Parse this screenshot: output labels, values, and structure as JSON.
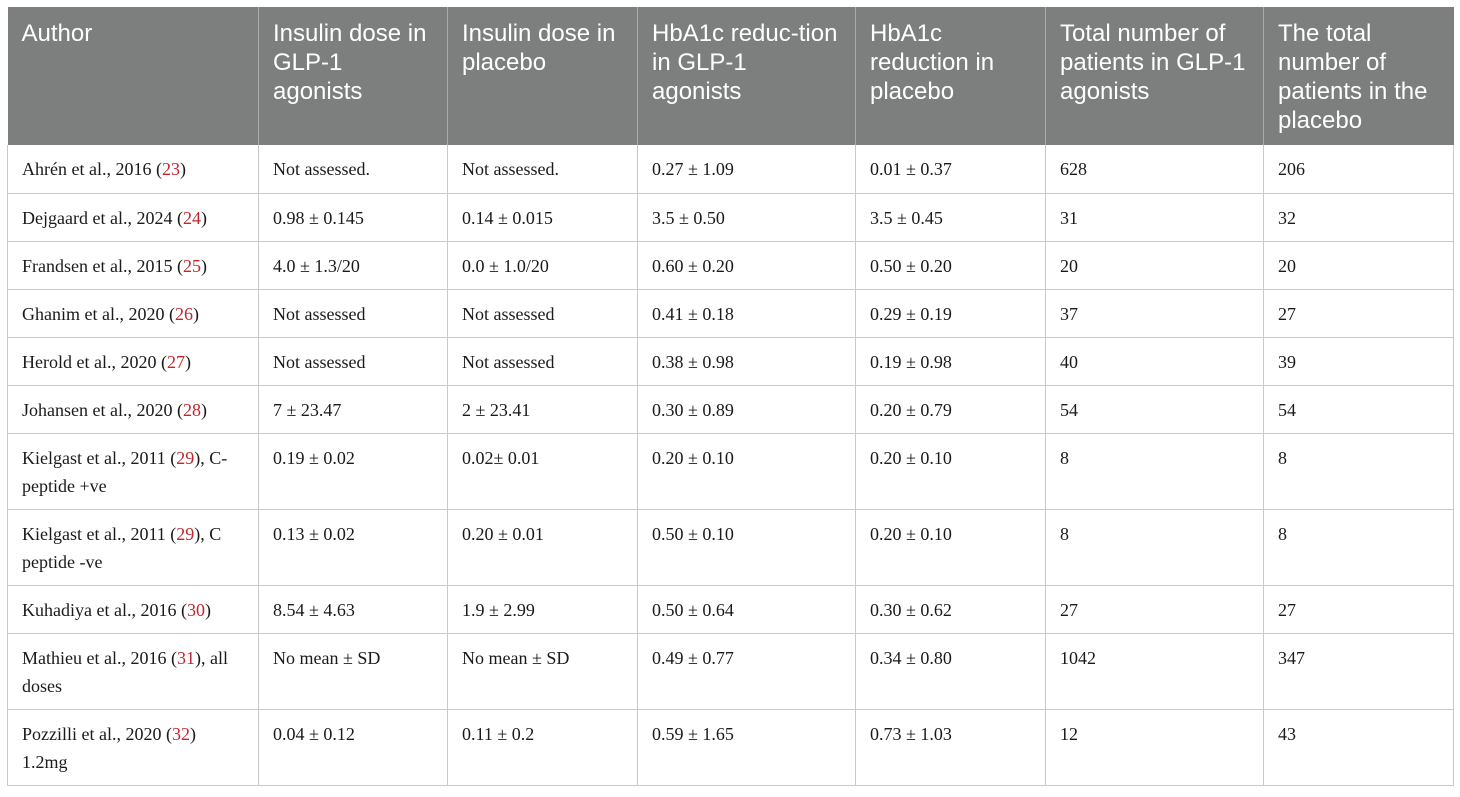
{
  "headers": [
    "Author",
    "Insulin dose in GLP-1 agonists",
    "Insulin dose in placebo",
    "HbA1c reduc-tion in GLP-1 agonists",
    "HbA1c reduction in placebo",
    "Total number of patients in GLP-1 agonists",
    "The total number of patients in the placebo"
  ],
  "rows": [
    {
      "author_pre": "Ahrén et al., 2016 (",
      "ref": "23",
      "author_post": ")",
      "cells": [
        "Not assessed.",
        "Not assessed.",
        "0.27 ± 1.09",
        "0.01 ± 0.37",
        "628",
        "206"
      ]
    },
    {
      "author_pre": "Dejgaard et al., 2024 (",
      "ref": "24",
      "author_post": ")",
      "cells": [
        "0.98 ± 0.145",
        "0.14 ± 0.015",
        "3.5 ± 0.50",
        "3.5 ± 0.45",
        "31",
        "32"
      ]
    },
    {
      "author_pre": "Frandsen et al., 2015 (",
      "ref": "25",
      "author_post": ")",
      "cells": [
        "4.0 ± 1.3/20",
        "0.0 ± 1.0/20",
        "0.60 ± 0.20",
        "0.50 ± 0.20",
        "20",
        "20"
      ]
    },
    {
      "author_pre": "Ghanim et al., 2020 (",
      "ref": "26",
      "author_post": ")",
      "cells": [
        "Not assessed",
        "Not assessed",
        "0.41 ± 0.18",
        "0.29 ± 0.19",
        "37",
        "27"
      ]
    },
    {
      "author_pre": "Herold et al., 2020 (",
      "ref": "27",
      "author_post": ")",
      "cells": [
        "Not assessed",
        "Not assessed",
        "0.38 ± 0.98",
        "0.19 ± 0.98",
        "40",
        "39"
      ]
    },
    {
      "author_pre": "Johansen et al., 2020 (",
      "ref": "28",
      "author_post": ")",
      "cells": [
        "7 ± 23.47",
        "2 ± 23.41",
        "0.30 ± 0.89",
        "0.20 ± 0.79",
        "54",
        "54"
      ]
    },
    {
      "author_pre": "Kielgast et al., 2011 (",
      "ref": "29",
      "author_post": "), C-peptide +ve",
      "cells": [
        "0.19 ± 0.02",
        "0.02± 0.01",
        "0.20 ± 0.10",
        "0.20 ± 0.10",
        "8",
        "8"
      ]
    },
    {
      "author_pre": "Kielgast et al., 2011 (",
      "ref": "29",
      "author_post": "), C peptide -ve",
      "cells": [
        "0.13 ± 0.02",
        "0.20 ± 0.01",
        "0.50 ± 0.10",
        "0.20 ± 0.10",
        "8",
        "8"
      ]
    },
    {
      "author_pre": "Kuhadiya et al., 2016 (",
      "ref": "30",
      "author_post": ")",
      "cells": [
        "8.54 ± 4.63",
        "1.9 ± 2.99",
        "0.50 ± 0.64",
        "0.30 ± 0.62",
        "27",
        "27"
      ]
    },
    {
      "author_pre": "Mathieu et al., 2016 (",
      "ref": "31",
      "author_post": "), all doses",
      "cells": [
        "No mean ± SD",
        "No mean ± SD",
        "0.49 ± 0.77",
        "0.34 ± 0.80",
        "1042",
        "347"
      ]
    },
    {
      "author_pre": "Pozzilli et al., 2020 (",
      "ref": "32",
      "author_post": ") 1.2mg",
      "cells": [
        "0.04 ± 0.12",
        "0.11 ± 0.2",
        "0.59 ± 1.65",
        "0.73 ± 1.03",
        "12",
        "43"
      ]
    }
  ]
}
